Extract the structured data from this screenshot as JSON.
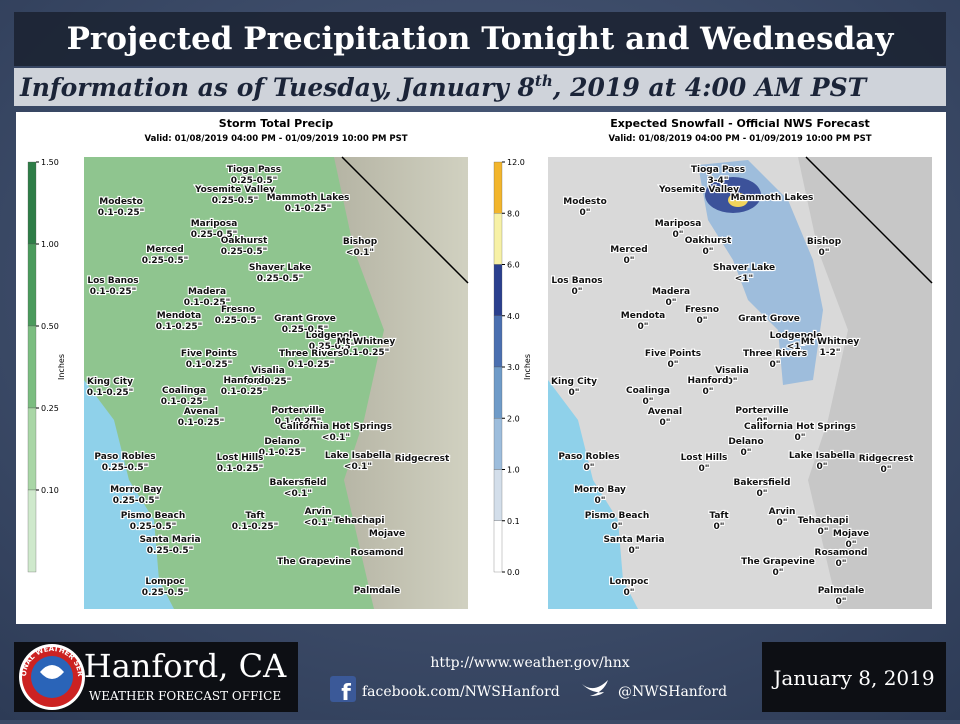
{
  "header": {
    "title": "Projected Precipitation Tonight and Wednesday",
    "subtitle_before": "Information as of Tuesday, January 8",
    "subtitle_sup": "th",
    "subtitle_after": ", 2019 at 4:00 AM PST"
  },
  "maps": [
    {
      "title": "Storm Total Precip",
      "valid": "Valid: 01/08/2019 04:00 PM - 01/09/2019 10:00 PM PST",
      "colorbar_label": "Inches",
      "colorbar_ticks": [
        "1.50",
        "1.00",
        "0.50",
        "0.25",
        "0.10"
      ],
      "labels": [
        {
          "place": "Tioga Pass",
          "amount": "0.25-0.5\""
        },
        {
          "place": "Yosemite Valley",
          "amount": "0.25-0.5\""
        },
        {
          "place": "Mammoth Lakes",
          "amount": "0.1-0.25\""
        },
        {
          "place": "Modesto",
          "amount": "0.1-0.25\""
        },
        {
          "place": "Mariposa",
          "amount": "0.25-0.5\""
        },
        {
          "place": "Oakhurst",
          "amount": "0.25-0.5\""
        },
        {
          "place": "Bishop",
          "amount": "<0.1\""
        },
        {
          "place": "Merced",
          "amount": "0.25-0.5\""
        },
        {
          "place": "Shaver Lake",
          "amount": "0.25-0.5\""
        },
        {
          "place": "Los Banos",
          "amount": "0.1-0.25\""
        },
        {
          "place": "Madera",
          "amount": "0.1-0.25\""
        },
        {
          "place": "Fresno",
          "amount": "0.25-0.5\""
        },
        {
          "place": "Grant Grove",
          "amount": "0.25-0.5\""
        },
        {
          "place": "Mendota",
          "amount": "0.1-0.25\""
        },
        {
          "place": "Lodgepole",
          "amount": "0.25-0.5\""
        },
        {
          "place": "Mt Whitney",
          "amount": "0.1-0.25\""
        },
        {
          "place": "Five Points",
          "amount": "0.1-0.25\""
        },
        {
          "place": "Three Rivers",
          "amount": "0.1-0.25\""
        },
        {
          "place": "Visalia",
          "amount": "0.1-0.25\""
        },
        {
          "place": "King City",
          "amount": "0.1-0.25\""
        },
        {
          "place": "Coalinga",
          "amount": "0.1-0.25\""
        },
        {
          "place": "Hanford",
          "amount": "0.1-0.25\""
        },
        {
          "place": "Avenal",
          "amount": "0.1-0.25\""
        },
        {
          "place": "Porterville",
          "amount": "0.1-0.25\""
        },
        {
          "place": "California Hot Springs",
          "amount": "<0.1\""
        },
        {
          "place": "Delano",
          "amount": "0.1-0.25\""
        },
        {
          "place": "Paso Robles",
          "amount": "0.25-0.5\""
        },
        {
          "place": "Lost Hills",
          "amount": "0.1-0.25\""
        },
        {
          "place": "Lake Isabella",
          "amount": "<0.1\""
        },
        {
          "place": "Ridgecrest"
        },
        {
          "place": "Bakersfield",
          "amount": "<0.1\""
        },
        {
          "place": "Morro Bay",
          "amount": "0.25-0.5\""
        },
        {
          "place": "Pismo Beach",
          "amount": "0.25-0.5\""
        },
        {
          "place": "Taft",
          "amount": "0.1-0.25\""
        },
        {
          "place": "Arvin",
          "amount": "<0.1\""
        },
        {
          "place": "Tehachapi"
        },
        {
          "place": "Mojave"
        },
        {
          "place": "Santa Maria",
          "amount": "0.25-0.5\""
        },
        {
          "place": "Rosamond"
        },
        {
          "place": "The Grapevine"
        },
        {
          "place": "Lompoc",
          "amount": "0.25-0.5\""
        },
        {
          "place": "Palmdale"
        }
      ]
    },
    {
      "title": "Expected Snowfall - Official NWS Forecast",
      "valid": "Valid: 01/08/2019 04:00 PM - 01/09/2019 10:00 PM PST",
      "colorbar_label": "Inches",
      "colorbar_ticks": [
        "12.0",
        "8.0",
        "6.0",
        "4.0",
        "3.0",
        "2.0",
        "1.0",
        "0.1",
        "0.0"
      ],
      "labels": [
        {
          "place": "Tioga Pass",
          "amount": "3-4\""
        },
        {
          "place": "Yosemite Valley"
        },
        {
          "place": "Mammoth Lakes"
        },
        {
          "place": "Modesto",
          "amount": "0\""
        },
        {
          "place": "Mariposa",
          "amount": "0\""
        },
        {
          "place": "Oakhurst",
          "amount": "0\""
        },
        {
          "place": "Bishop",
          "amount": "0\""
        },
        {
          "place": "Merced",
          "amount": "0\""
        },
        {
          "place": "Shaver Lake",
          "amount": "<1\""
        },
        {
          "place": "Los Banos",
          "amount": "0\""
        },
        {
          "place": "Madera",
          "amount": "0\""
        },
        {
          "place": "Fresno",
          "amount": "0\""
        },
        {
          "place": "Grant Grove"
        },
        {
          "place": "Mendota",
          "amount": "0\""
        },
        {
          "place": "Lodgepole",
          "amount": "<1\""
        },
        {
          "place": "Mt Whitney",
          "amount": "1-2\""
        },
        {
          "place": "Five Points",
          "amount": "0\""
        },
        {
          "place": "Three Rivers",
          "amount": "0\""
        },
        {
          "place": "Visalia",
          "amount": "0\""
        },
        {
          "place": "King City",
          "amount": "0\""
        },
        {
          "place": "Coalinga",
          "amount": "0\""
        },
        {
          "place": "Hanford",
          "amount": "0\""
        },
        {
          "place": "Avenal",
          "amount": "0\""
        },
        {
          "place": "Porterville",
          "amount": "0\""
        },
        {
          "place": "California Hot Springs",
          "amount": "0\""
        },
        {
          "place": "Delano",
          "amount": "0\""
        },
        {
          "place": "Paso Robles",
          "amount": "0\""
        },
        {
          "place": "Lost Hills",
          "amount": "0\""
        },
        {
          "place": "Lake Isabella",
          "amount": "0\""
        },
        {
          "place": "Ridgecrest",
          "amount": "0\""
        },
        {
          "place": "Bakersfield",
          "amount": "0\""
        },
        {
          "place": "Morro Bay",
          "amount": "0\""
        },
        {
          "place": "Pismo Beach",
          "amount": "0\""
        },
        {
          "place": "Taft",
          "amount": "0\""
        },
        {
          "place": "Arvin",
          "amount": "0\""
        },
        {
          "place": "Tehachapi",
          "amount": "0\""
        },
        {
          "place": "Mojave",
          "amount": "0\""
        },
        {
          "place": "Santa Maria",
          "amount": "0\""
        },
        {
          "place": "Rosamond",
          "amount": "0\""
        },
        {
          "place": "The Grapevine",
          "amount": "0\""
        },
        {
          "place": "Lompoc",
          "amount": "0\""
        },
        {
          "place": "Palmdale",
          "amount": "0\""
        }
      ]
    }
  ],
  "footer": {
    "logo_text": "NATIONAL WEATHER SERVICE",
    "office": "Hanford, CA",
    "office_sub": "WEATHER FORECAST OFFICE",
    "url": "http://www.weather.gov/hnx",
    "facebook": "facebook.com/NWSHanford",
    "twitter": "@NWSHanford",
    "date": "January 8, 2019"
  }
}
